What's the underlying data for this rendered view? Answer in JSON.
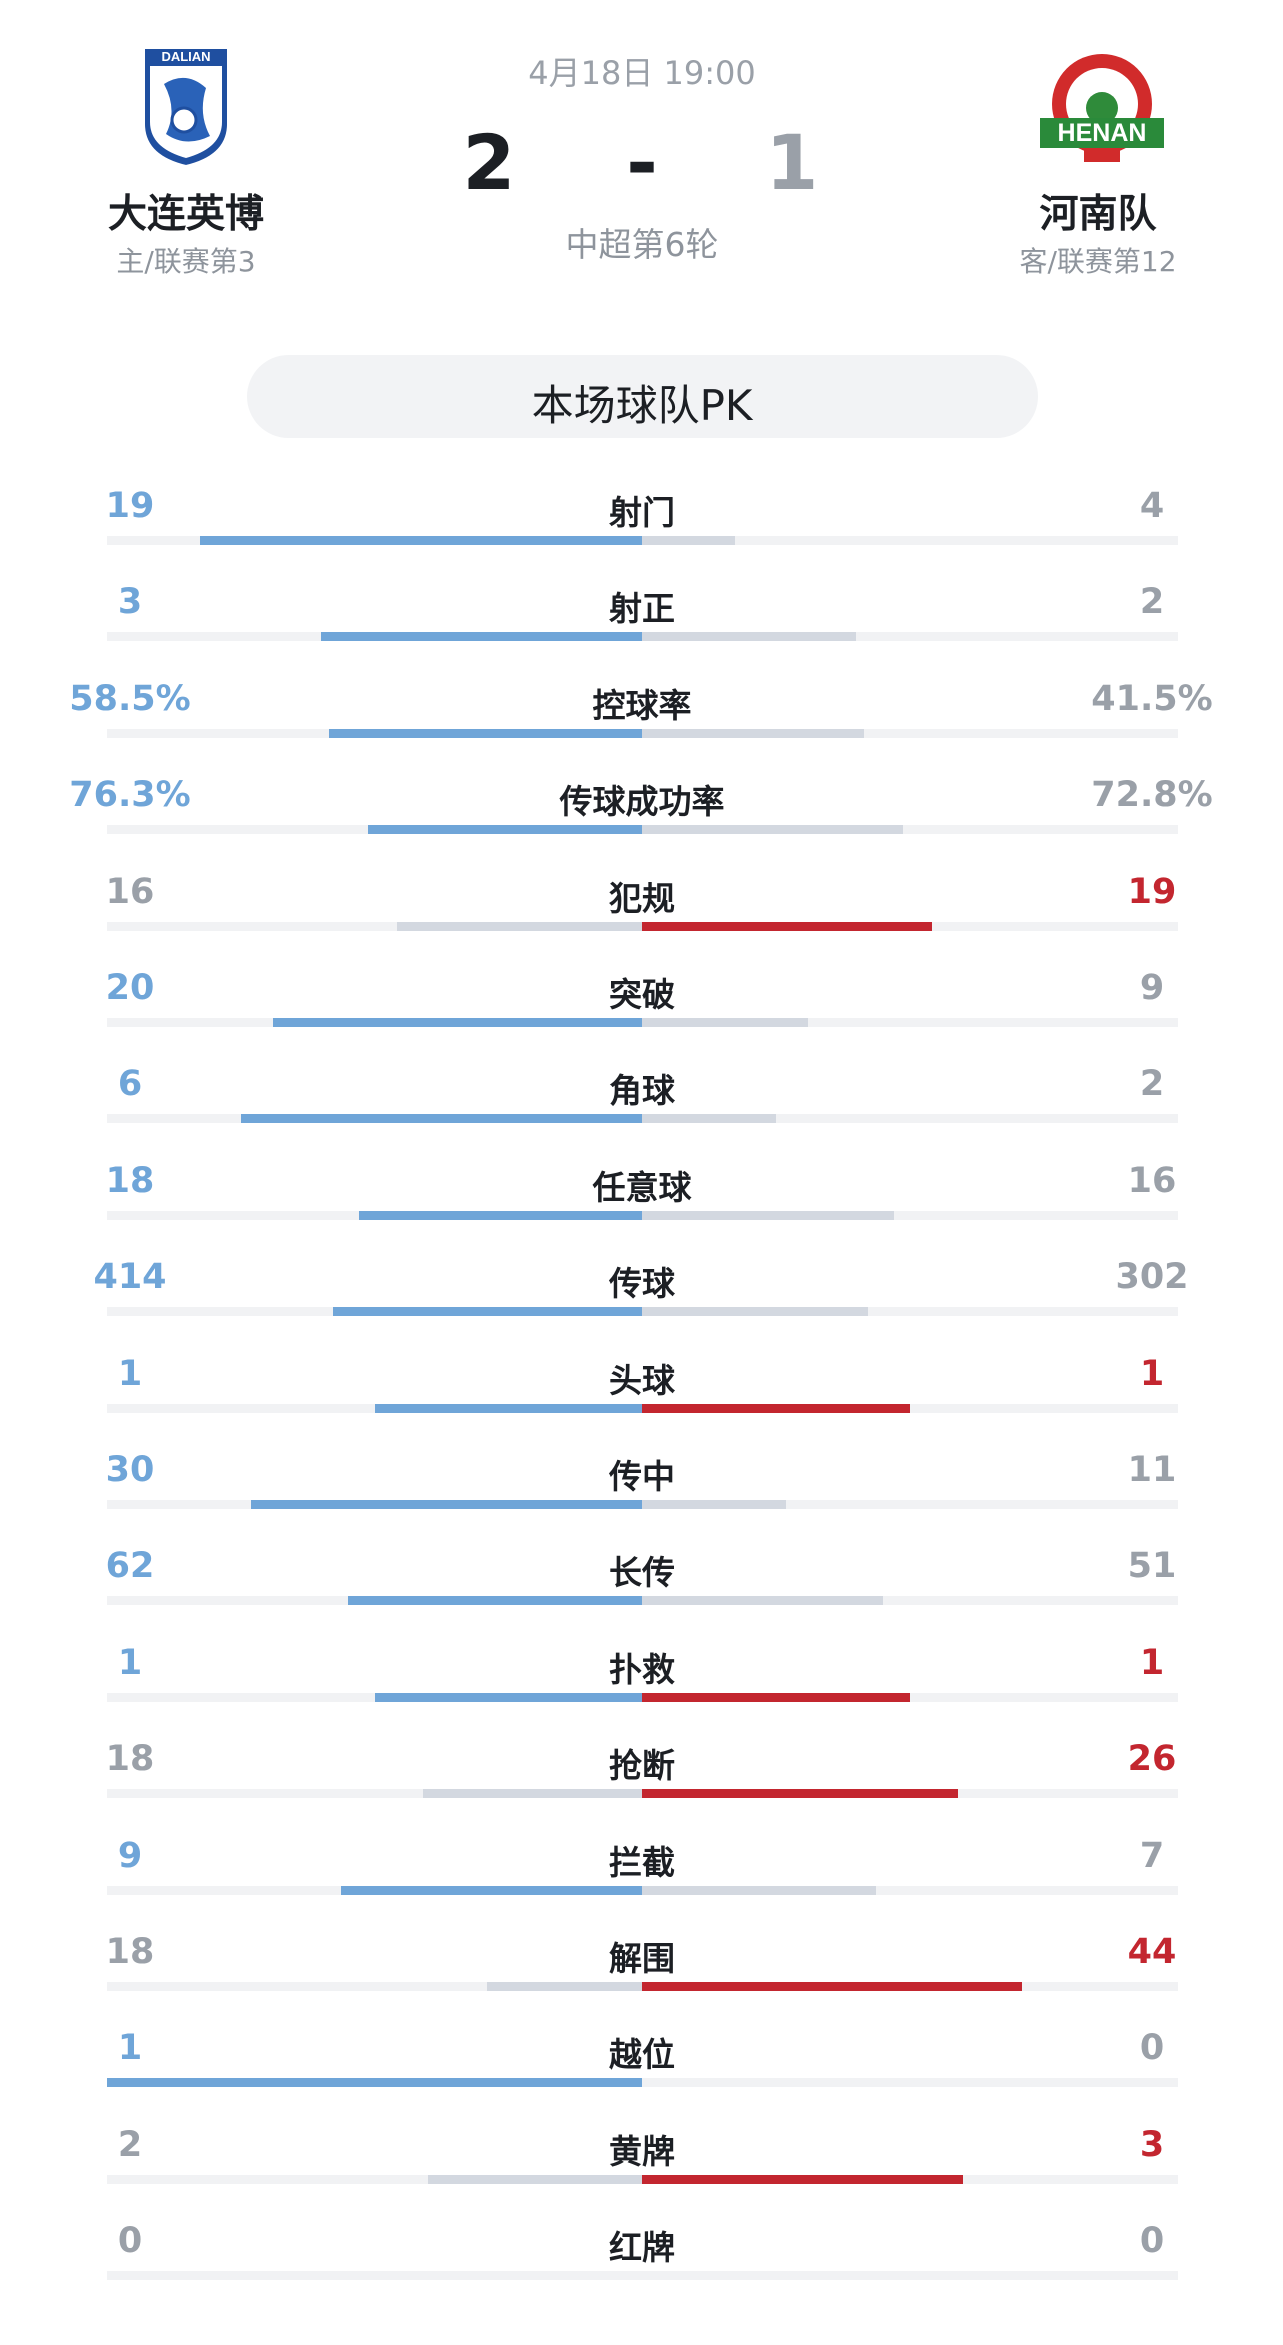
{
  "header": {
    "date": "4月18日 19:00",
    "home_score": "2",
    "separator": "-",
    "away_score": "1",
    "round": "中超第6轮",
    "home_name": "大连英博",
    "home_sub": "主/联赛第3",
    "home_logo": "DALIAN",
    "away_name": "河南队",
    "away_sub": "客/联赛第12",
    "away_logo": "HENAN"
  },
  "section_title": "本场球队PK",
  "stats": [
    {
      "label": "射门",
      "home": "19",
      "away": "4"
    },
    {
      "label": "射正",
      "home": "3",
      "away": "2"
    },
    {
      "label": "控球率",
      "home": "58.5%",
      "away": "41.5%"
    },
    {
      "label": "传球成功率",
      "home": "76.3%",
      "away": "72.8%"
    },
    {
      "label": "犯规",
      "home": "16",
      "away": "19"
    },
    {
      "label": "突破",
      "home": "20",
      "away": "9"
    },
    {
      "label": "角球",
      "home": "6",
      "away": "2"
    },
    {
      "label": "任意球",
      "home": "18",
      "away": "16"
    },
    {
      "label": "传球",
      "home": "414",
      "away": "302"
    },
    {
      "label": "头球",
      "home": "1",
      "away": "1"
    },
    {
      "label": "传中",
      "home": "30",
      "away": "11"
    },
    {
      "label": "长传",
      "home": "62",
      "away": "51"
    },
    {
      "label": "扑救",
      "home": "1",
      "away": "1"
    },
    {
      "label": "抢断",
      "home": "18",
      "away": "26"
    },
    {
      "label": "拦截",
      "home": "9",
      "away": "7"
    },
    {
      "label": "解围",
      "home": "18",
      "away": "44"
    },
    {
      "label": "越位",
      "home": "1",
      "away": "0"
    },
    {
      "label": "黄牌",
      "home": "2",
      "away": "3"
    },
    {
      "label": "红牌",
      "home": "0",
      "away": "0"
    }
  ]
}
